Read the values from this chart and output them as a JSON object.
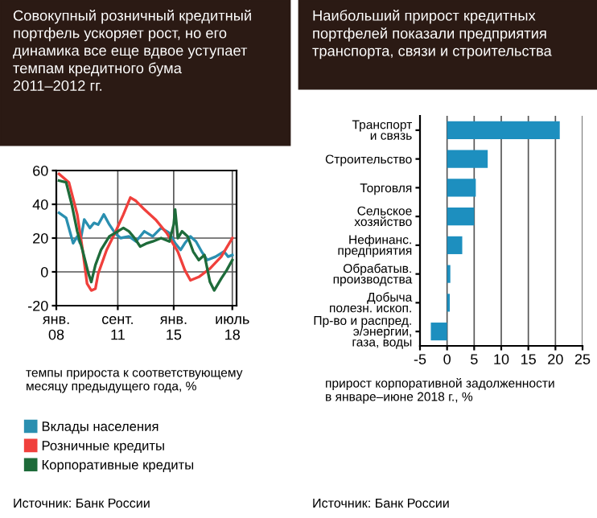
{
  "chart_data": [
    {
      "type": "line",
      "title": "Совокупный розничный кредитный\nпортфель ускоряет рост, но его\nдинамика все еще вдвое уступает\nтемпам кредитного бума\n2011–2012 гг.",
      "xlabel": "темпы прироста к соответствующему\nмесяцу предыдущего года, %",
      "xlim": [
        "2008-01",
        "2018-10"
      ],
      "xticks": [
        {
          "value": "2008-01",
          "label": "янв.\n08"
        },
        {
          "value": "2011-09",
          "label": "сент.\n11"
        },
        {
          "value": "2015-01",
          "label": "янв.\n15"
        },
        {
          "value": "2018-07",
          "label": "июль\n18"
        }
      ],
      "ylim": [
        -20,
        60
      ],
      "yticks": [
        -20,
        0,
        20,
        40,
        60
      ],
      "grid": true,
      "legend": "bottom",
      "marker": "none",
      "line_style": "solid",
      "series": [
        {
          "name": "Вклады населения",
          "color": "#2a8fb0",
          "x": [
            "2008-03",
            "2008-08",
            "2008-11",
            "2009-01",
            "2009-04",
            "2009-06",
            "2009-09",
            "2010-01",
            "2010-04",
            "2010-07",
            "2010-11",
            "2011-03",
            "2011-07",
            "2011-11",
            "2012-05",
            "2012-10",
            "2013-04",
            "2013-10",
            "2014-04",
            "2014-10",
            "2015-02",
            "2015-06",
            "2015-09",
            "2016-01",
            "2016-05",
            "2016-09",
            "2017-01",
            "2017-07",
            "2018-01",
            "2018-04",
            "2018-07"
          ],
          "values": [
            35,
            32,
            23,
            17,
            21,
            17,
            31,
            26,
            29,
            28,
            34,
            28,
            23,
            20,
            21,
            18,
            24,
            21,
            26,
            23,
            17,
            13,
            17,
            21,
            18,
            12,
            7,
            9,
            12,
            9,
            10
          ]
        },
        {
          "name": "Розничные кредиты",
          "color": "#f0403c",
          "x": [
            "2008-03",
            "2008-10",
            "2009-04",
            "2009-08",
            "2009-11",
            "2010-02",
            "2010-05",
            "2010-07",
            "2011-01",
            "2011-07",
            "2012-01",
            "2012-06",
            "2012-10",
            "2013-04",
            "2013-12",
            "2014-08",
            "2015-04",
            "2015-09",
            "2016-01",
            "2016-07",
            "2017-03",
            "2017-11",
            "2018-07"
          ],
          "values": [
            58,
            53,
            34,
            12,
            -7,
            -11,
            -10,
            -1,
            13,
            23,
            34,
            44,
            42,
            37,
            31,
            23,
            12,
            1,
            -5,
            -3,
            2,
            9,
            20
          ]
        },
        {
          "name": "Корпоративные кредиты",
          "color": "#1e6b3a",
          "x": [
            "2008-03",
            "2008-08",
            "2008-12",
            "2009-04",
            "2009-08",
            "2009-12",
            "2010-02",
            "2010-05",
            "2010-09",
            "2011-03",
            "2011-09",
            "2012-01",
            "2012-05",
            "2012-09",
            "2013-01",
            "2013-06",
            "2013-10",
            "2014-04",
            "2014-10",
            "2015-01",
            "2015-02",
            "2015-04",
            "2015-07",
            "2015-11",
            "2016-03",
            "2016-07",
            "2016-11",
            "2017-03",
            "2017-06",
            "2017-11",
            "2018-03",
            "2018-07"
          ],
          "values": [
            54,
            53,
            40,
            24,
            12,
            -1,
            -6,
            4,
            13,
            21,
            24,
            26,
            24,
            20,
            15,
            17,
            18,
            20,
            18,
            28,
            37,
            20,
            24,
            21,
            12,
            7,
            10,
            -6,
            -11,
            -4,
            1,
            7
          ]
        }
      ],
      "annotations": [
        "Источник: Банк России"
      ]
    },
    {
      "type": "bar",
      "orientation": "horizontal",
      "title": "Наибольший прирост кредитных\nпортфелей показали предприятия\nтранспорта, связи и строительства",
      "xlabel": "прирост корпоративной задолженности\nв январе–июне 2018 г., %",
      "categories": [
        "Транспорт\nи связь",
        "Строительство",
        "Торговля",
        "Сельское\nхозяйство",
        "Нефинанс.\nпредприятия",
        "Обрабатыв.\nпроизводства",
        "Добыча\nполезн. ископ.",
        "Пр-во и распред.\nэ/энергии,\nгаза, воды"
      ],
      "values": [
        20.8,
        7.5,
        5.3,
        5.0,
        2.8,
        0.6,
        0.5,
        -3.0
      ],
      "color": "#1d8fbf",
      "xlim": [
        -5,
        25
      ],
      "xticks": [
        -5,
        0,
        5,
        10,
        15,
        20,
        25
      ],
      "grid": "x",
      "annotations": [
        "Источник: Банк России"
      ]
    }
  ]
}
